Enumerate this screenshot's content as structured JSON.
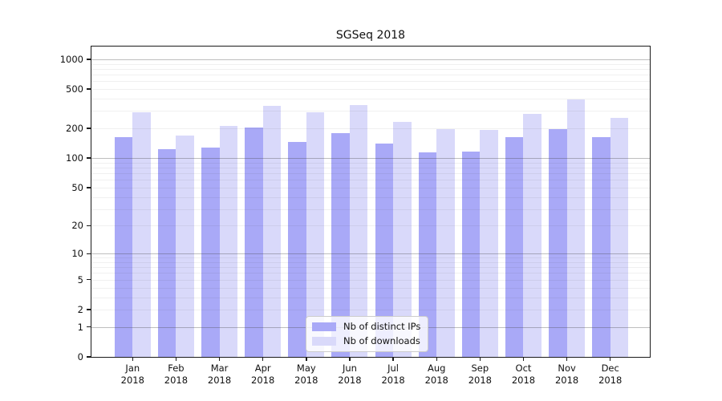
{
  "chart_data": {
    "type": "bar",
    "title": "SGSeq 2018",
    "categories": [
      "Jan 2018",
      "Feb 2018",
      "Mar 2018",
      "Apr 2018",
      "May 2018",
      "Jun 2018",
      "Jul 2018",
      "Aug 2018",
      "Sep 2018",
      "Oct 2018",
      "Nov 2018",
      "Dec 2018"
    ],
    "series": [
      {
        "name": "Nb of distinct IPs",
        "color": "#a9a9f7",
        "values": [
          163,
          123,
          128,
          203,
          147,
          179,
          141,
          114,
          116,
          163,
          197,
          163
        ]
      },
      {
        "name": "Nb of downloads",
        "color": "#d9d9fa",
        "values": [
          292,
          170,
          213,
          339,
          290,
          344,
          231,
          197,
          194,
          280,
          390,
          257
        ]
      }
    ],
    "yscale": "log1p",
    "y_ticks": [
      0,
      1,
      2,
      5,
      10,
      20,
      50,
      100,
      200,
      500,
      1000
    ],
    "ylim": [
      0,
      1350
    ],
    "xlabel": "",
    "ylabel": "",
    "grid": "horizontal-on",
    "legend_position": "lower center",
    "colors": {
      "axis": "#1a1a1a",
      "major_grid": "#c3c3c3",
      "minor_grid": "#ececec",
      "background": "#ffffff"
    }
  }
}
